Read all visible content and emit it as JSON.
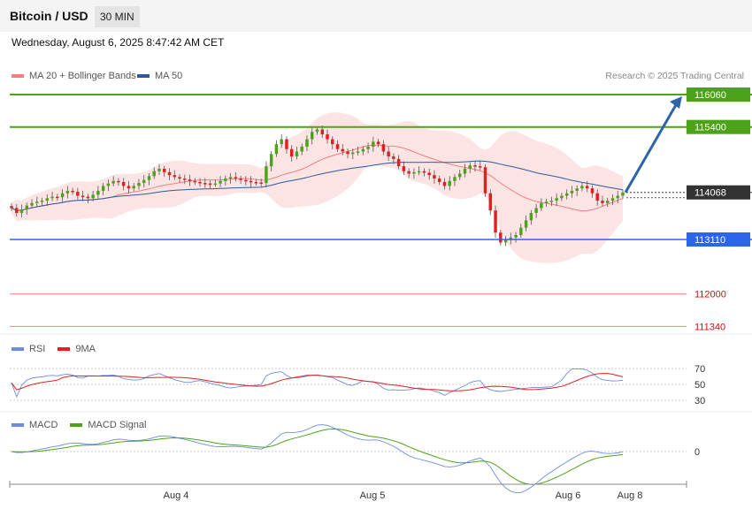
{
  "header": {
    "pair": "Bitcoin / USD",
    "timeframe": "30 MIN"
  },
  "date_text": "Wednesday, August 6, 2025 8:47:42 AM CET",
  "credit": "Research © 2025 Trading Central",
  "colors": {
    "green": "#4ca319",
    "blue": "#2b65ec",
    "red_line": "#f08080",
    "dark": "#333333",
    "arrow": "#2e64a8",
    "bollinger_fill": "#fde4e4",
    "ma20": "#f08080",
    "ma50": "#2e5a9c",
    "rsi": "#6b8ce0",
    "rsi_ma": "#e02020",
    "macd": "#6b8ce0",
    "macd_signal": "#4ca319",
    "up_candle": "#4ca319",
    "down_candle": "#e02020"
  },
  "chart_data": [
    {
      "type": "candlestick",
      "legend": [
        "MA 20 + Bollinger Bands",
        "MA 50"
      ],
      "x_labels": [
        "Aug 4",
        "Aug 5",
        "Aug 6",
        "Aug 8"
      ],
      "levels": [
        {
          "value": 116060,
          "label": "116060",
          "style": "resistance"
        },
        {
          "value": 115400,
          "label": "115400",
          "style": "resistance"
        },
        {
          "value": 114068,
          "label": "114068",
          "style": "current"
        },
        {
          "value": 113110,
          "label": "113110",
          "style": "support"
        },
        {
          "value": 112000,
          "label": "112000",
          "style": "support-minor"
        },
        {
          "value": 111340,
          "label": "111340",
          "style": "support-minor"
        }
      ],
      "projection": {
        "from": 114068,
        "to": 116060
      },
      "close_series": [
        113750,
        113650,
        113720,
        113800,
        113850,
        113880,
        113900,
        113950,
        113980,
        113970,
        114050,
        114100,
        114080,
        114000,
        113980,
        113950,
        114020,
        114100,
        114200,
        114250,
        114300,
        114280,
        114200,
        114150,
        114200,
        114260,
        114320,
        114400,
        114500,
        114550,
        114480,
        114420,
        114380,
        114350,
        114330,
        114300,
        114280,
        114260,
        114250,
        114240,
        114250,
        114300,
        114350,
        114380,
        114350,
        114320,
        114300,
        114280,
        114270,
        114260,
        114600,
        114850,
        115050,
        115150,
        114950,
        114800,
        114900,
        115000,
        115150,
        115300,
        115350,
        115250,
        115150,
        115050,
        114950,
        114900,
        114850,
        114880,
        114900,
        114950,
        115000,
        115100,
        115050,
        114900,
        114800,
        114750,
        114600,
        114500,
        114450,
        114480,
        114500,
        114470,
        114420,
        114350,
        114280,
        114200,
        114300,
        114380,
        114450,
        114550,
        114620,
        114600,
        114580,
        114050,
        113700,
        113250,
        113050,
        113100,
        113150,
        113200,
        113350,
        113500,
        113650,
        113750,
        113850,
        113880,
        113900,
        113950,
        114000,
        114050,
        114100,
        114150,
        114200,
        114150,
        114050,
        113900,
        113850,
        113900,
        113950,
        114000,
        114068
      ]
    },
    {
      "type": "line",
      "name": "RSI",
      "legend": [
        "RSI",
        "9MA"
      ],
      "y_ticks": [
        70,
        50,
        30
      ]
    },
    {
      "type": "line",
      "name": "MACD",
      "legend": [
        "MACD",
        "MACD Signal"
      ],
      "y_ticks": [
        0
      ]
    }
  ]
}
